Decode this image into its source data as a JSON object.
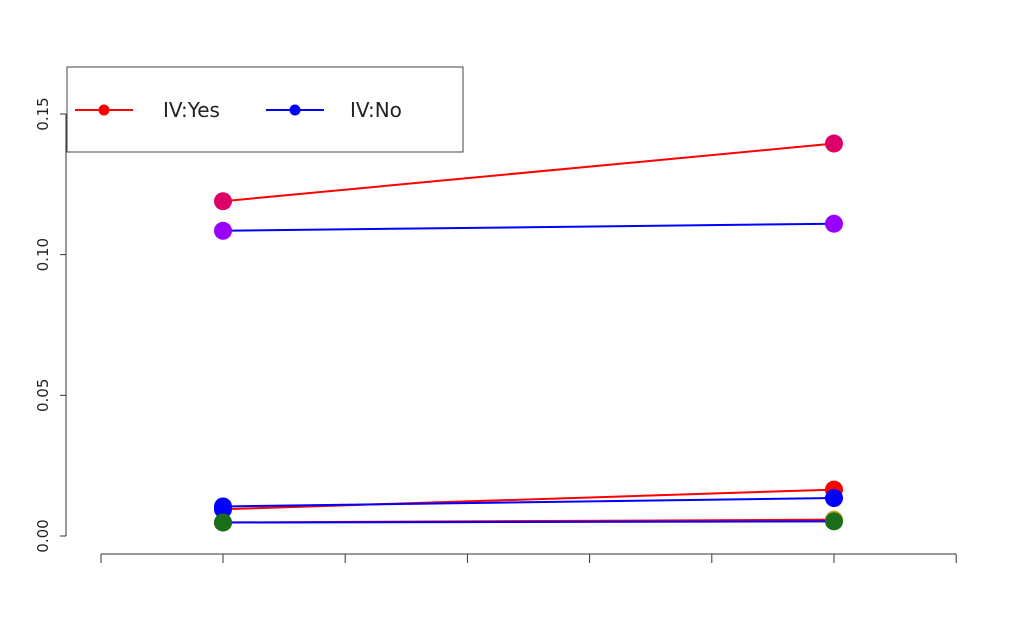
{
  "chart_data": {
    "type": "line",
    "title": "",
    "xlabel": "",
    "ylabel": "",
    "x": [
      1,
      2,
      3,
      4,
      5,
      6,
      7
    ],
    "xlim": [
      0,
      7
    ],
    "ylim": [
      0,
      0.15
    ],
    "y_ticks": [
      "0.00",
      "0.05",
      "0.10",
      "0.15"
    ],
    "grid": false,
    "legend": {
      "position": "top-left",
      "entries": [
        {
          "label": "IV:Yes",
          "color": "#ff0000"
        },
        {
          "label": "IV:No",
          "color": "#0000ff"
        }
      ]
    },
    "series": [
      {
        "group": "IV:Yes",
        "color": "#ff0000",
        "points": [
          [
            1,
            0.119,
            "#dd0066"
          ],
          [
            6,
            0.1395,
            "#dd0066"
          ]
        ]
      },
      {
        "group": "IV:No",
        "color": "#0000ff",
        "points": [
          [
            1,
            0.1085,
            "#9900ff"
          ],
          [
            6,
            0.111,
            "#9900ff"
          ]
        ]
      },
      {
        "group": "IV:Yes",
        "color": "#ff0000",
        "points": [
          [
            1,
            0.0095,
            "#0000ff"
          ],
          [
            6,
            0.0165,
            "#ff0000"
          ]
        ]
      },
      {
        "group": "IV:No",
        "color": "#0000ff",
        "points": [
          [
            1,
            0.0105,
            "#0000ff"
          ],
          [
            6,
            0.0135,
            "#0000ff"
          ]
        ]
      },
      {
        "group": "IV:Yes",
        "color": "#ff0000",
        "points": [
          [
            1,
            0.0048,
            "#1a6e1a"
          ],
          [
            6,
            0.0058,
            "#d4a017"
          ]
        ]
      },
      {
        "group": "IV:No",
        "color": "#0000ff",
        "points": [
          [
            1,
            0.0048,
            "#1a6e1a"
          ],
          [
            6,
            0.0052,
            "#1a6e1a"
          ]
        ]
      }
    ]
  }
}
